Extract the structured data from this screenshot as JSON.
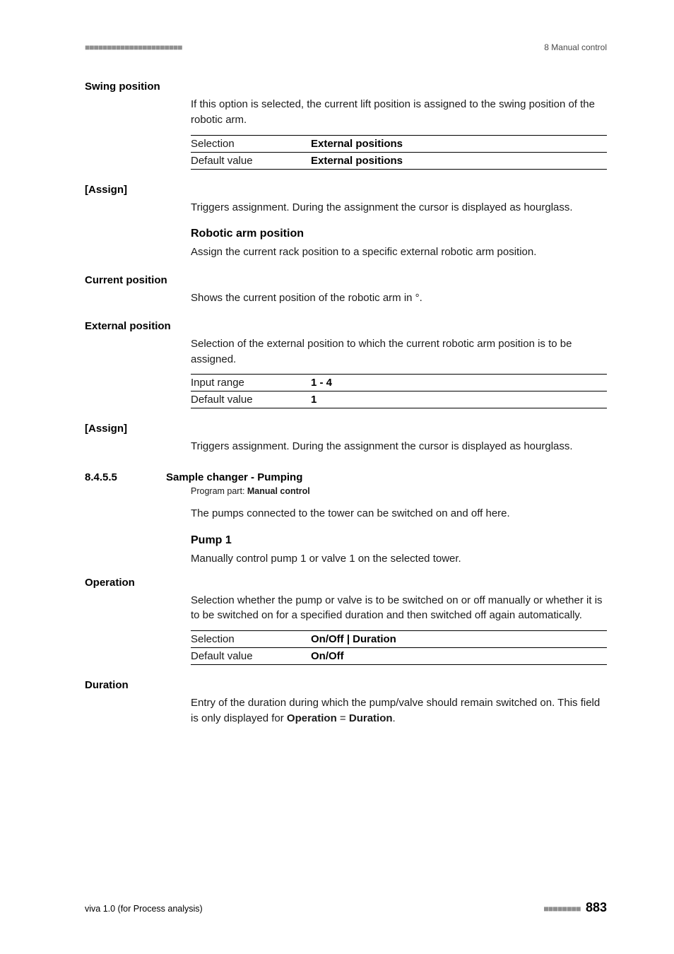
{
  "header": {
    "left_decor": "■■■■■■■■■■■■■■■■■■■■■■",
    "right": "8 Manual control"
  },
  "swing_position": {
    "label": "Swing position",
    "desc": "If this option is selected, the current lift position is assigned to the swing position of the robotic arm.",
    "rows": [
      {
        "k": "Selection",
        "v": "External positions"
      },
      {
        "k": "Default value",
        "v": "External positions"
      }
    ]
  },
  "assign1": {
    "label": "[Assign]",
    "desc": "Triggers assignment. During the assignment the cursor is displayed as hourglass."
  },
  "robotic_arm": {
    "head": "Robotic arm position",
    "desc": "Assign the current rack position to a specific external robotic arm position."
  },
  "current_position": {
    "label": "Current position",
    "desc": "Shows the current position of the robotic arm in °."
  },
  "external_position": {
    "label": "External position",
    "desc": "Selection of the external position to which the current robotic arm position is to be assigned.",
    "rows": [
      {
        "k": "Input range",
        "v": "1 - 4"
      },
      {
        "k": "Default value",
        "v": "1"
      }
    ]
  },
  "assign2": {
    "label": "[Assign]",
    "desc": "Triggers assignment. During the assignment the cursor is displayed as hourglass."
  },
  "section": {
    "num": "8.4.5.5",
    "title": "Sample changer - Pumping",
    "program_part_pre": "Program part: ",
    "program_part_b": "Manual control",
    "desc": "The pumps connected to the tower can be switched on and off here."
  },
  "pump1": {
    "head": "Pump 1",
    "desc": "Manually control pump 1 or valve 1 on the selected tower."
  },
  "operation": {
    "label": "Operation",
    "desc": "Selection whether the pump or valve is to be switched on or off manually or whether it is to be switched on for a specified duration and then switched off again automatically.",
    "rows": [
      {
        "k": "Selection",
        "v": "On/Off | Duration"
      },
      {
        "k": "Default value",
        "v": "On/Off"
      }
    ]
  },
  "duration": {
    "label": "Duration",
    "desc_pre": "Entry of the duration during which the pump/valve should remain switched on. This field is only displayed for ",
    "b1": "Operation",
    "eq": " = ",
    "b2": "Duration",
    "end": "."
  },
  "footer": {
    "left": "viva 1.0 (for Process analysis)",
    "dots": "■■■■■■■■",
    "page": "883"
  }
}
